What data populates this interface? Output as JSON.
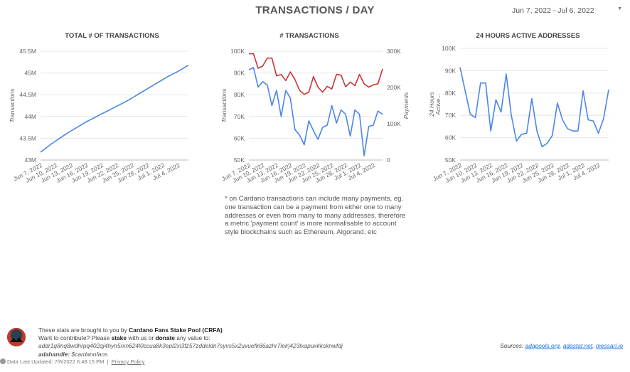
{
  "page": {
    "title": "TRANSACTIONS / DAY",
    "date_range": "Jun 7, 2022 - Jul 6, 2022"
  },
  "chart_data": [
    {
      "type": "line",
      "title": "TOTAL # OF TRANSACTIONS",
      "ylabel": "Transactions",
      "ylim": [
        43000000,
        45500000
      ],
      "y_ticks": [
        "43M",
        "43.5M",
        "44M",
        "44.5M",
        "45M",
        "45.5M"
      ],
      "x_ticks": [
        "Jun 7, 2022",
        "Jun 10, 2022",
        "Jun 13, 2022",
        "Jun 16, 2022",
        "Jun 19, 2022",
        "Jun 22, 2022",
        "Jun 25, 2022",
        "Jun 28, 2022",
        "Jul 1, 2022",
        "Jul 4, 2022"
      ],
      "series": [
        {
          "color": "#4a86e8",
          "values": [
            43180000,
            43270000,
            43360000,
            43440000,
            43520000,
            43600000,
            43670000,
            43740000,
            43810000,
            43880000,
            43940000,
            44000000,
            44060000,
            44120000,
            44180000,
            44240000,
            44300000,
            44360000,
            44430000,
            44500000,
            44570000,
            44640000,
            44710000,
            44780000,
            44850000,
            44920000,
            44980000,
            45040000,
            45110000,
            45180000
          ]
        }
      ]
    },
    {
      "type": "line",
      "title": "# TRANSACTIONS",
      "ylabel": "Transactions",
      "ylabel_right": "Payments",
      "ylim": [
        50000,
        100000
      ],
      "ylim_right": [
        0,
        300000
      ],
      "y_ticks": [
        "50K",
        "60K",
        "70K",
        "80K",
        "90K",
        "100K"
      ],
      "y_ticks_right": [
        "0",
        "100K",
        "200K",
        "300K"
      ],
      "x_ticks": [
        "Jun 7, 2022",
        "Jun 10, 2022",
        "Jun 13, 2022",
        "Jun 16, 2022",
        "Jun 19, 2022",
        "Jun 22, 2022",
        "Jun 25, 2022",
        "Jun 28, 2022",
        "Jul 1, 2022",
        "Jul 4, 2022"
      ],
      "series": [
        {
          "axis": "left",
          "color": "#4a86e8",
          "values": [
            91500,
            92500,
            83500,
            86000,
            84500,
            75000,
            82000,
            70000,
            82000,
            78500,
            64000,
            61500,
            57000,
            68000,
            63500,
            59500,
            65000,
            66000,
            75000,
            67000,
            73000,
            71000,
            61000,
            73000,
            71000,
            52000,
            65500,
            66000,
            72500,
            71000
          ]
        },
        {
          "axis": "right",
          "color": "#cc3333",
          "values": [
            293000,
            293000,
            253000,
            259000,
            281000,
            281000,
            232000,
            236000,
            219000,
            243000,
            222000,
            192000,
            181000,
            187000,
            230000,
            201000,
            187000,
            203000,
            196000,
            236000,
            234000,
            202000,
            215000,
            205000,
            236000,
            210000,
            201000,
            207000,
            210000,
            251000
          ]
        }
      ]
    },
    {
      "type": "line",
      "title": "24 HOURS ACTIVE ADDRESSES",
      "ylabel": "24 Hours Active...",
      "ylim": [
        50000,
        100000
      ],
      "y_ticks": [
        "50K",
        "60K",
        "70K",
        "80K",
        "90K",
        "100K"
      ],
      "x_ticks": [
        "Jun 7, 2022",
        "Jun 10, 2022",
        "Jun 13, 2022",
        "Jun 16, 2022",
        "Jun 19, 2022",
        "Jun 22, 2022",
        "Jun 25, 2022",
        "Jun 28, 2022",
        "Jul 1, 2022",
        "Jul 4, 2022"
      ],
      "series": [
        {
          "color": "#4a86e8",
          "values": [
            91500,
            81000,
            70500,
            69000,
            84500,
            84500,
            63000,
            77000,
            71500,
            88500,
            70000,
            58500,
            61500,
            62000,
            77500,
            63000,
            56000,
            57500,
            61000,
            75500,
            68000,
            64000,
            63000,
            63000,
            81000,
            68000,
            67500,
            62000,
            68500,
            81500
          ]
        }
      ]
    }
  ],
  "note": "* on Cardano transactions can include many payments, eg. one transaction can be a payment from either one to many addresses or even from many to many addresses, therefore a metric 'payment count' is more normalisable to account style blockchains such as Ethereum, Algorand, etc",
  "footer": {
    "line1_prefix": "These stats are brought to you by",
    "line1_pool": "Cardano Fans Stake Pool (CRFA)",
    "line2_prefix": "Want to contribute? Please",
    "line2_stake": "stake",
    "line2_mid": "with us or",
    "line2_donate": "donate",
    "line2_suffix": "any value to:",
    "address": "addr1q8nq8wdhrpq402qj4hyn5rxn624l0ccua8k3epl2xl3fz57zddeldn7syvs5x2uvuefk66azhr7lelrj423lxapuxkksknwfdj",
    "adahandle_label": "adahandle:",
    "adahandle_value": "$cardanofans",
    "sources_label": "Sources:",
    "sources": [
      "adapools.org",
      "adastat.net",
      "messari.io"
    ],
    "last_updated": "Data Last Updated: 7/6/2022 6:48:15 PM",
    "privacy": "Privacy Policy"
  }
}
